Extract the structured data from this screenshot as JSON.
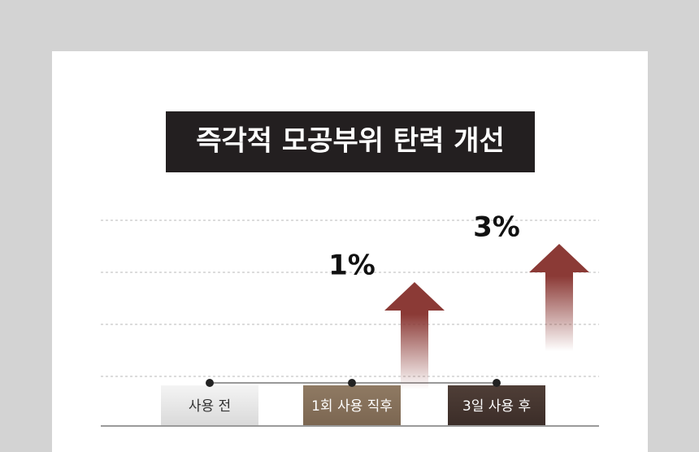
{
  "chart_data": {
    "type": "arrow",
    "title": "즉각적 모공부위 탄력 개선",
    "categories": [
      "사용 전",
      "1회 사용 직후",
      "3일 사용 후"
    ],
    "values": [
      null,
      1,
      3
    ],
    "value_labels": [
      null,
      "1%",
      "3%"
    ],
    "color": "#8b3a36"
  }
}
